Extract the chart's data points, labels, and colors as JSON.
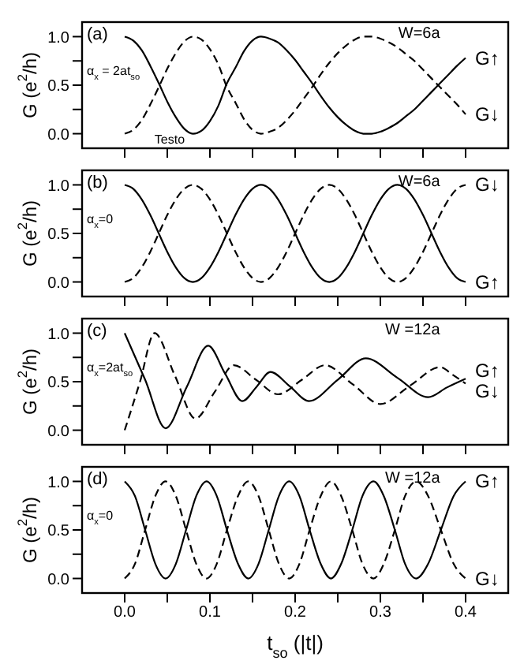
{
  "chart_data": [
    {
      "type": "line",
      "ylabel": "G (e$^{2}$/h)",
      "tick_labels": "y",
      "annotations": [
        "(a)",
        "W=6a",
        "α$_{x}$ = 2at$_{so}$",
        "Testo"
      ],
      "xlim": [
        -0.05,
        0.45
      ],
      "xticks": [
        {
          "value": 0,
          "label": null
        },
        {
          "value": 0.05,
          "label": null
        },
        {
          "value": 0.1,
          "label": null
        },
        {
          "value": 0.15,
          "label": null
        },
        {
          "value": 0.2,
          "label": null
        },
        {
          "value": 0.25,
          "label": null
        },
        {
          "value": 0.3,
          "label": null
        },
        {
          "value": 0.35,
          "label": null
        },
        {
          "value": 0.4,
          "label": null
        }
      ],
      "ylim": [
        -0.15,
        1.15
      ],
      "yticks": [
        {
          "value": 0,
          "label": "0.0"
        },
        {
          "value": 0.25,
          "label": null
        },
        {
          "value": 0.5,
          "label": "0.5"
        },
        {
          "value": 0.75,
          "label": null
        },
        {
          "value": 1,
          "label": "1.0"
        }
      ],
      "x": [
        0,
        0.01,
        0.02,
        0.03,
        0.04,
        0.05,
        0.06,
        0.07,
        0.08,
        0.09,
        0.1,
        0.11,
        0.12,
        0.13,
        0.14,
        0.15,
        0.16,
        0.17,
        0.18,
        0.19,
        0.2,
        0.21,
        0.22,
        0.23,
        0.24,
        0.25,
        0.26,
        0.27,
        0.28,
        0.29,
        0.3,
        0.31,
        0.32,
        0.33,
        0.34,
        0.35,
        0.36,
        0.37,
        0.38,
        0.39,
        0.4
      ],
      "series": [
        {
          "name": "G↑",
          "color": "#000000",
          "line_style": "solid",
          "values": [
            1,
            0.96,
            0.86,
            0.7,
            0.52,
            0.33,
            0.17,
            0.05,
            0,
            0.03,
            0.13,
            0.29,
            0.52,
            0.68,
            0.85,
            0.96,
            1,
            0.98,
            0.94,
            0.86,
            0.76,
            0.64,
            0.52,
            0.39,
            0.27,
            0.17,
            0.09,
            0.03,
            0,
            0,
            0.02,
            0.06,
            0.11,
            0.18,
            0.25,
            0.34,
            0.43,
            0.52,
            0.61,
            0.7,
            0.78
          ]
        },
        {
          "name": "G↓",
          "color": "#000000",
          "line_style": "dashed",
          "values": [
            0,
            0.04,
            0.14,
            0.3,
            0.48,
            0.67,
            0.83,
            0.95,
            1,
            0.97,
            0.87,
            0.71,
            0.48,
            0.32,
            0.15,
            0.04,
            0,
            0.02,
            0.06,
            0.14,
            0.24,
            0.36,
            0.48,
            0.61,
            0.73,
            0.83,
            0.91,
            0.97,
            1,
            1,
            0.98,
            0.94,
            0.89,
            0.82,
            0.75,
            0.66,
            0.57,
            0.48,
            0.39,
            0.3,
            0.2
          ]
        }
      ]
    },
    {
      "type": "line",
      "ylabel": "G (e$^{2}$/h)",
      "tick_labels": "y",
      "annotations": [
        "(b)",
        "W=6a",
        "α$_{x}$=0"
      ],
      "xlim": [
        -0.05,
        0.45
      ],
      "xticks": [
        {
          "value": 0,
          "label": null
        },
        {
          "value": 0.05,
          "label": null
        },
        {
          "value": 0.1,
          "label": null
        },
        {
          "value": 0.15,
          "label": null
        },
        {
          "value": 0.2,
          "label": null
        },
        {
          "value": 0.25,
          "label": null
        },
        {
          "value": 0.3,
          "label": null
        },
        {
          "value": 0.35,
          "label": null
        },
        {
          "value": 0.4,
          "label": null
        }
      ],
      "ylim": [
        -0.15,
        1.15
      ],
      "yticks": [
        {
          "value": 0,
          "label": "0.0"
        },
        {
          "value": 0.25,
          "label": null
        },
        {
          "value": 0.5,
          "label": "0.5"
        },
        {
          "value": 0.75,
          "label": null
        },
        {
          "value": 1,
          "label": "1.0"
        }
      ],
      "x": [
        0,
        0.01,
        0.02,
        0.03,
        0.04,
        0.05,
        0.06,
        0.07,
        0.08,
        0.09,
        0.1,
        0.11,
        0.12,
        0.13,
        0.14,
        0.15,
        0.16,
        0.17,
        0.18,
        0.19,
        0.2,
        0.21,
        0.22,
        0.23,
        0.24,
        0.25,
        0.26,
        0.27,
        0.28,
        0.29,
        0.3,
        0.31,
        0.32,
        0.33,
        0.34,
        0.35,
        0.36,
        0.37,
        0.38,
        0.39,
        0.4
      ],
      "series": [
        {
          "name": "G↑",
          "color": "#000000",
          "line_style": "solid",
          "values": [
            1,
            0.96,
            0.85,
            0.69,
            0.5,
            0.31,
            0.15,
            0.04,
            0,
            0.04,
            0.15,
            0.31,
            0.5,
            0.69,
            0.85,
            0.96,
            1,
            0.96,
            0.85,
            0.69,
            0.5,
            0.31,
            0.15,
            0.04,
            0,
            0.04,
            0.15,
            0.31,
            0.5,
            0.69,
            0.85,
            0.96,
            1,
            0.96,
            0.85,
            0.69,
            0.5,
            0.31,
            0.15,
            0.04,
            0
          ]
        },
        {
          "name": "G↓",
          "color": "#000000",
          "line_style": "dashed",
          "values": [
            0,
            0.04,
            0.15,
            0.31,
            0.5,
            0.69,
            0.85,
            0.96,
            1,
            0.96,
            0.85,
            0.69,
            0.5,
            0.31,
            0.15,
            0.04,
            0,
            0.04,
            0.15,
            0.31,
            0.5,
            0.69,
            0.85,
            0.96,
            1,
            0.96,
            0.85,
            0.69,
            0.5,
            0.31,
            0.15,
            0.04,
            0,
            0.04,
            0.15,
            0.31,
            0.5,
            0.69,
            0.85,
            0.96,
            1
          ]
        }
      ]
    },
    {
      "type": "line",
      "ylabel": "G (e$^{2}$/h)",
      "tick_labels": "y",
      "annotations": [
        "(c)",
        "W =12a",
        "α$_{x}$=2at$_{so}$"
      ],
      "xlim": [
        -0.05,
        0.45
      ],
      "xticks": [
        {
          "value": 0,
          "label": null
        },
        {
          "value": 0.05,
          "label": null
        },
        {
          "value": 0.1,
          "label": null
        },
        {
          "value": 0.15,
          "label": null
        },
        {
          "value": 0.2,
          "label": null
        },
        {
          "value": 0.25,
          "label": null
        },
        {
          "value": 0.3,
          "label": null
        },
        {
          "value": 0.35,
          "label": null
        },
        {
          "value": 0.4,
          "label": null
        }
      ],
      "ylim": [
        -0.15,
        1.15
      ],
      "yticks": [
        {
          "value": 0,
          "label": "0.0"
        },
        {
          "value": 0.25,
          "label": null
        },
        {
          "value": 0.5,
          "label": "0.5"
        },
        {
          "value": 0.75,
          "label": null
        },
        {
          "value": 1,
          "label": "1.0"
        }
      ],
      "series": [
        {
          "name": "G↑",
          "color": "#000000",
          "line_style": "solid",
          "x": [
            0,
            0.024,
            0.048,
            0.073,
            0.098,
            0.118,
            0.138,
            0.155,
            0.171,
            0.194,
            0.216,
            0.25,
            0.283,
            0.32,
            0.356,
            0.378,
            0.4
          ],
          "values": [
            1,
            0.52,
            0.02,
            0.45,
            0.87,
            0.58,
            0.3,
            0.45,
            0.6,
            0.45,
            0.3,
            0.52,
            0.74,
            0.54,
            0.34,
            0.44,
            0.53
          ]
        },
        {
          "name": "G↓",
          "color": "#000000",
          "line_style": "dashed",
          "x": [
            0,
            0.018,
            0.035,
            0.059,
            0.083,
            0.106,
            0.128,
            0.154,
            0.18,
            0.208,
            0.235,
            0.268,
            0.3,
            0.335,
            0.37,
            0.385,
            0.4
          ],
          "values": [
            0,
            0.5,
            1,
            0.56,
            0.12,
            0.4,
            0.67,
            0.52,
            0.37,
            0.52,
            0.67,
            0.47,
            0.27,
            0.46,
            0.65,
            0.57,
            0.48
          ]
        }
      ]
    },
    {
      "type": "line",
      "ylabel": "G (e$^{2}$/h)",
      "xlabel": "t$_{so}$ (|t|)",
      "annotations": [
        "(d)",
        "W =12a",
        "α$_{x}$=0"
      ],
      "xlim": [
        -0.05,
        0.45
      ],
      "xticks": [
        {
          "value": 0,
          "label": "0.0"
        },
        {
          "value": 0.05,
          "label": null
        },
        {
          "value": 0.1,
          "label": "0.1"
        },
        {
          "value": 0.15,
          "label": null
        },
        {
          "value": 0.2,
          "label": "0.2"
        },
        {
          "value": 0.25,
          "label": null
        },
        {
          "value": 0.3,
          "label": "0.3"
        },
        {
          "value": 0.35,
          "label": null
        },
        {
          "value": 0.4,
          "label": "0.4"
        }
      ],
      "ylim": [
        -0.15,
        1.15
      ],
      "yticks": [
        {
          "value": 0,
          "label": "0.0"
        },
        {
          "value": 0.25,
          "label": null
        },
        {
          "value": 0.5,
          "label": "0.5"
        },
        {
          "value": 0.75,
          "label": null
        },
        {
          "value": 1,
          "label": "1.0"
        }
      ],
      "x": [
        0,
        0.012,
        0.024,
        0.036,
        0.048,
        0.06,
        0.072,
        0.084,
        0.096,
        0.108,
        0.12,
        0.133,
        0.145,
        0.157,
        0.169,
        0.181,
        0.193,
        0.205,
        0.217,
        0.23,
        0.242,
        0.254,
        0.267,
        0.279,
        0.292,
        0.304,
        0.317,
        0.329,
        0.342,
        0.356,
        0.371,
        0.386,
        0.4
      ],
      "series": [
        {
          "name": "G↑",
          "color": "#000000",
          "line_style": "solid",
          "values": [
            1,
            0.85,
            0.5,
            0.15,
            0,
            0.15,
            0.5,
            0.85,
            1,
            0.85,
            0.5,
            0.15,
            0,
            0.15,
            0.5,
            0.85,
            1,
            0.85,
            0.5,
            0.15,
            0,
            0.15,
            0.5,
            0.85,
            1,
            0.85,
            0.5,
            0.15,
            0,
            0.15,
            0.5,
            0.85,
            1
          ]
        },
        {
          "name": "G↓",
          "color": "#000000",
          "line_style": "dashed",
          "values": [
            0,
            0.15,
            0.5,
            0.85,
            1,
            0.85,
            0.5,
            0.15,
            0,
            0.15,
            0.5,
            0.85,
            1,
            0.85,
            0.5,
            0.15,
            0,
            0.15,
            0.5,
            0.85,
            1,
            0.85,
            0.5,
            0.15,
            0,
            0.15,
            0.5,
            0.85,
            1,
            0.85,
            0.5,
            0.15,
            0
          ]
        }
      ]
    }
  ]
}
